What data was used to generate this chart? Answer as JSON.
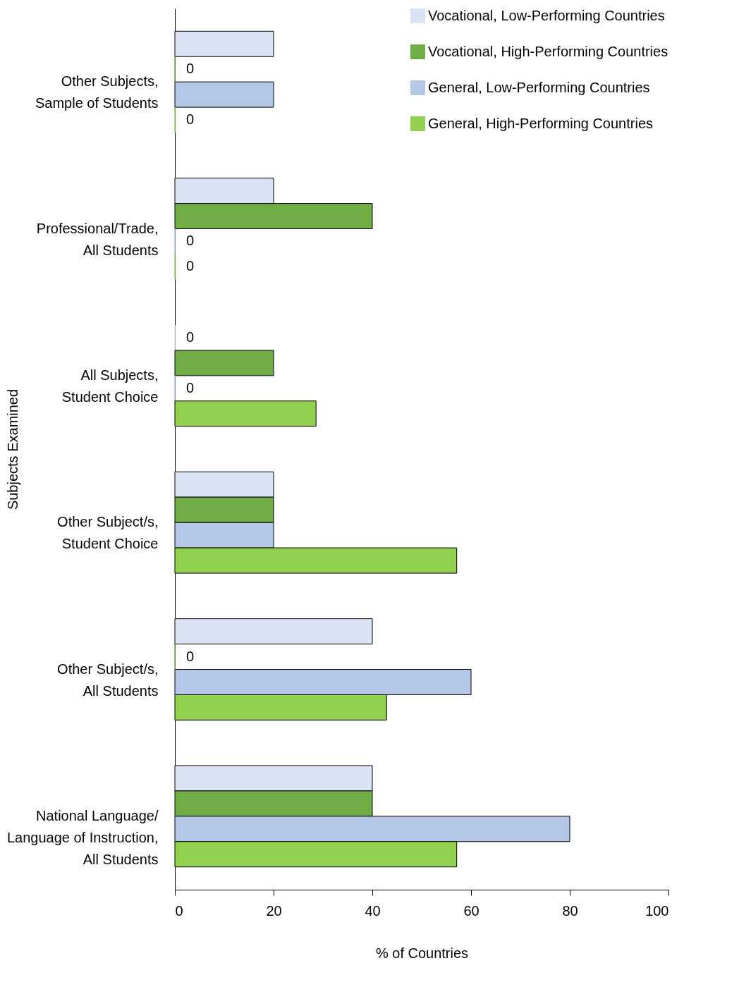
{
  "chart_data": {
    "type": "bar",
    "orientation": "horizontal",
    "xlabel": "% of Countries",
    "ylabel": "Subjects Examined",
    "categories": [
      "Other Subjects,\nSample of Students",
      "Professional/Trade,\nAll Students",
      "All Subjects,\nStudent Choice",
      "Other Subject/s,\nStudent Choice",
      "Other Subject/s,\nAll Students",
      "National Language/\nLanguage of Instruction,\nAll Students"
    ],
    "series": [
      {
        "name": "Vocational, Low-Performing Countries",
        "color": "#dae3f3",
        "values": [
          20,
          20,
          0,
          20,
          40,
          40
        ],
        "value_labels": [
          null,
          null,
          "0",
          null,
          null,
          null
        ]
      },
      {
        "name": "Vocational, High-Performing Countries",
        "color": "#70ad47",
        "values": [
          0,
          40,
          20,
          20,
          0,
          40
        ],
        "value_labels": [
          "0",
          null,
          null,
          null,
          "0",
          null
        ]
      },
      {
        "name": "General, Low-Performing Countries",
        "color": "#b4c7e7",
        "values": [
          20,
          0,
          0,
          20,
          60,
          80
        ],
        "value_labels": [
          null,
          "0",
          "0",
          null,
          null,
          null
        ]
      },
      {
        "name": "General, High-Performing Countries",
        "color": "#92d050",
        "values": [
          0,
          0,
          28.6,
          57.1,
          42.9,
          57.1
        ],
        "value_labels": [
          "0",
          "0",
          null,
          null,
          null,
          null
        ]
      }
    ],
    "xlim": [
      0,
      100
    ],
    "xticks": [
      0,
      20,
      40,
      60,
      80,
      100
    ],
    "grid": false,
    "legend": "top right"
  }
}
